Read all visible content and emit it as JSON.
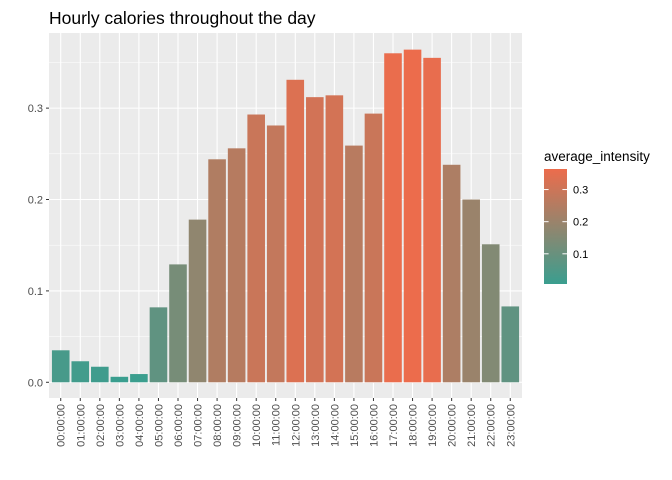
{
  "chart_data": {
    "type": "bar",
    "title": "Hourly calories throughout the day",
    "xlabel": "",
    "ylabel": "",
    "categories": [
      "00:00:00",
      "01:00:00",
      "02:00:00",
      "03:00:00",
      "04:00:00",
      "05:00:00",
      "06:00:00",
      "07:00:00",
      "08:00:00",
      "09:00:00",
      "10:00:00",
      "11:00:00",
      "12:00:00",
      "13:00:00",
      "14:00:00",
      "15:00:00",
      "16:00:00",
      "17:00:00",
      "18:00:00",
      "19:00:00",
      "20:00:00",
      "21:00:00",
      "22:00:00",
      "23:00:00"
    ],
    "values": [
      0.035,
      0.023,
      0.017,
      0.006,
      0.009,
      0.082,
      0.129,
      0.178,
      0.244,
      0.256,
      0.293,
      0.281,
      0.331,
      0.312,
      0.314,
      0.259,
      0.294,
      0.36,
      0.364,
      0.355,
      0.238,
      0.2,
      0.151,
      0.083
    ],
    "ylim": [
      -0.0172,
      0.3822
    ],
    "yticks": [
      0.0,
      0.1,
      0.2,
      0.3
    ],
    "ytick_labels": [
      "0.0",
      "0.1",
      "0.2",
      "0.3"
    ],
    "grid": true,
    "fill_variable": "average_intensity",
    "legend": {
      "title": "average_intensity",
      "placement": "right",
      "ticks": [
        0.1,
        0.2,
        0.3
      ],
      "tick_labels": [
        "0.1",
        "0.2",
        "0.3"
      ],
      "range": [
        0.006,
        0.364
      ]
    },
    "colors": {
      "low": "#3a9e8f",
      "high": "#ec6c4c",
      "panel_background": "#ebebeb",
      "grid": "#ffffff"
    }
  }
}
